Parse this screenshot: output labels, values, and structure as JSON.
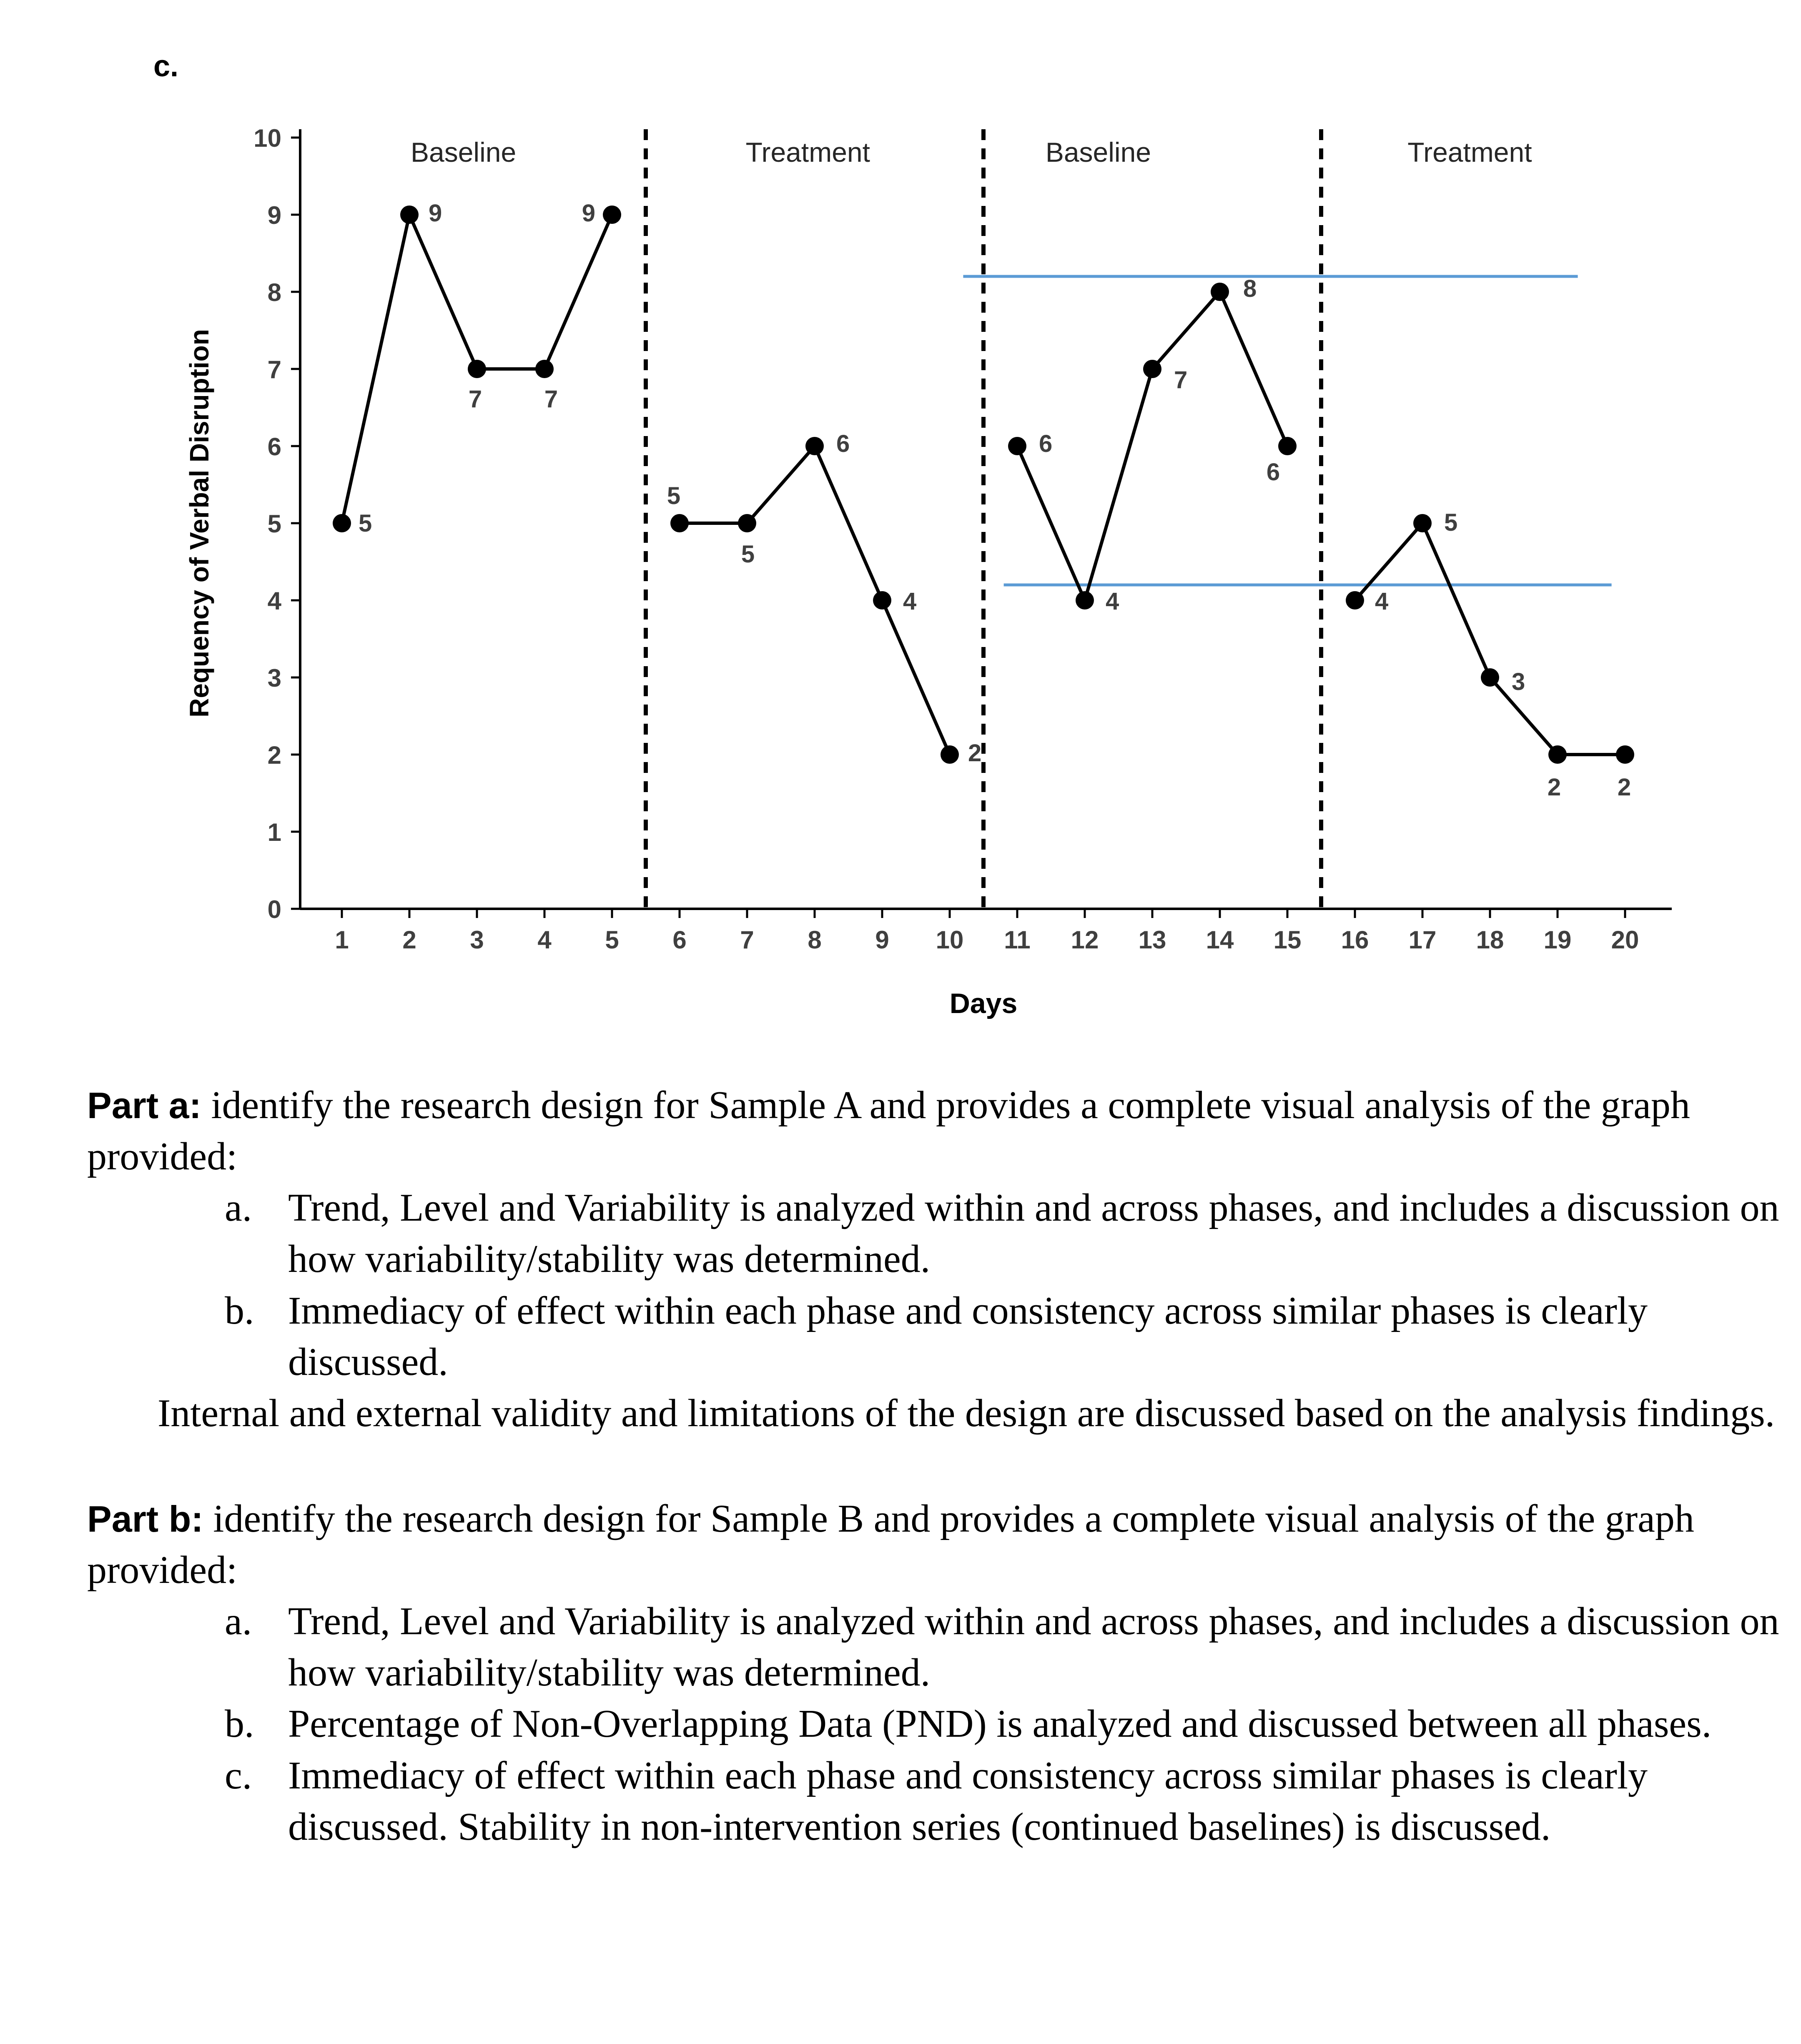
{
  "page": {
    "section_label": "c."
  },
  "chart_data": {
    "type": "line",
    "title": "",
    "xlabel": "Days",
    "ylabel": "Requency of Verbal Disruption",
    "ylim": [
      0,
      10
    ],
    "y_ticks": [
      0,
      1,
      2,
      3,
      4,
      5,
      6,
      7,
      8,
      9,
      10
    ],
    "x": [
      1,
      2,
      3,
      4,
      5,
      6,
      7,
      8,
      9,
      10,
      11,
      12,
      13,
      14,
      15,
      16,
      17,
      18,
      19,
      20
    ],
    "values": [
      5,
      9,
      7,
      7,
      9,
      5,
      5,
      6,
      4,
      2,
      6,
      4,
      7,
      8,
      6,
      4,
      5,
      3,
      2,
      2
    ],
    "phases": [
      {
        "label": "Baseline",
        "days": [
          1,
          5
        ]
      },
      {
        "label": "Treatment",
        "days": [
          6,
          10
        ]
      },
      {
        "label": "Baseline",
        "days": [
          11,
          15
        ]
      },
      {
        "label": "Treatment",
        "days": [
          16,
          20
        ]
      }
    ],
    "phase_boundaries": [
      5.5,
      10.5,
      15.5
    ],
    "reference_lines": [
      {
        "y": 8.2,
        "x_start": 10.2,
        "x_end": 19.3,
        "color": "#5b9bd5"
      },
      {
        "y": 4.2,
        "x_start": 10.8,
        "x_end": 19.8,
        "color": "#5b9bd5"
      }
    ],
    "line_color": "#000000",
    "point_color": "#000000",
    "grid": false,
    "legend": false
  },
  "text": {
    "part_a": {
      "label": "Part a:",
      "intro": " identify the research design for Sample A and provides a complete visual analysis of the graph provided:",
      "items": [
        {
          "marker": "a.",
          "text": "Trend, Level and Variability is analyzed within and across phases, and includes a discussion on how variability/stability was determined."
        },
        {
          "marker": "b.",
          "text": "Immediacy of effect within each phase and consistency across similar phases is clearly discussed."
        }
      ],
      "footer": "Internal and external validity and limitations of the design are discussed based on the analysis findings."
    },
    "part_b": {
      "label": "Part b:",
      "intro": " identify the research design for Sample B and provides a complete visual analysis of the graph provided:",
      "items": [
        {
          "marker": "a.",
          "text": "Trend, Level and Variability is analyzed within and across phases, and includes a discussion on how variability/stability was determined."
        },
        {
          "marker": "b.",
          "text": "Percentage of Non-Overlapping Data (PND) is analyzed and discussed between all phases."
        },
        {
          "marker": "c.",
          "text": "Immediacy of effect within each phase and consistency across similar phases is clearly discussed. Stability in non-intervention series (continued baselines) is discussed."
        }
      ]
    }
  }
}
